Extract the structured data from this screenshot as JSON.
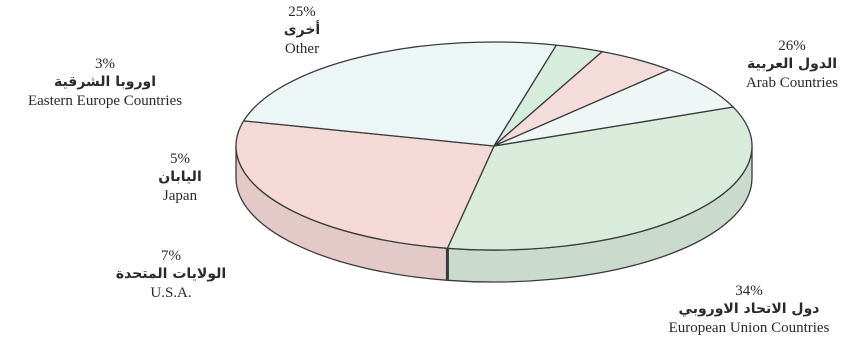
{
  "chart_data": {
    "type": "pie",
    "style": "3d",
    "slices": [
      {
        "label_en": "European Union Countries",
        "label_ar": "دول الاتحاد الاوروبي",
        "value": 34,
        "pct_label": "34%",
        "color": "#d9ecdc"
      },
      {
        "label_en": "Arab Countries",
        "label_ar": "الدول العربية",
        "value": 26,
        "pct_label": "26%",
        "color": "#f4d9d7"
      },
      {
        "label_en": "Other",
        "label_ar": "أخرى",
        "value": 25,
        "pct_label": "25%",
        "color": "#edf6f6"
      },
      {
        "label_en": "Eastern Europe Countries",
        "label_ar": "اوروبا الشرقية",
        "value": 3,
        "pct_label": "3%",
        "color": "#d6ecdc"
      },
      {
        "label_en": "Japan",
        "label_ar": "اليابان",
        "value": 5,
        "pct_label": "5%",
        "color": "#f4dcdb"
      },
      {
        "label_en": "U.S.A.",
        "label_ar": "الولايات المتحدة",
        "value": 7,
        "pct_label": "7%",
        "color": "#eef7f6"
      }
    ]
  }
}
